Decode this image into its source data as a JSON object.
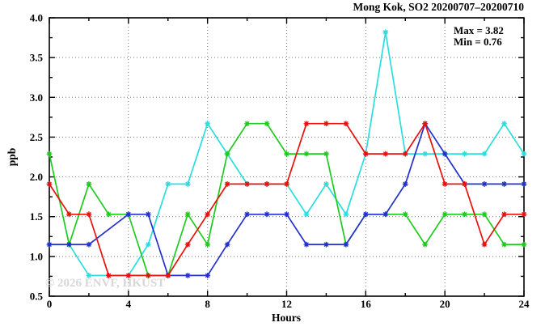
{
  "title": "Mong Kok, SO2 20200707–20200710",
  "stats": {
    "max_label": "Max = 3.82",
    "min_label": "Min = 0.76"
  },
  "watermark": "© 2026 ENVF, HKUST",
  "chart_data": {
    "type": "line",
    "title": "Mong Kok, SO2 20200707–20200710",
    "xlabel": "Hours",
    "ylabel": "ppb",
    "xlim": [
      0,
      24
    ],
    "ylim": [
      0.5,
      4.0
    ],
    "x_major_ticks": [
      0,
      4,
      8,
      12,
      16,
      20,
      24
    ],
    "x_tick_labels": [
      "0",
      "4",
      "8",
      "12",
      "16",
      "20",
      "24"
    ],
    "x_minor_ticks": [
      2,
      6,
      10,
      14,
      18,
      22
    ],
    "y_major_ticks": [
      0.5,
      1.0,
      1.5,
      2.0,
      2.5,
      3.0,
      3.5,
      4.0
    ],
    "y_tick_labels": [
      "0.5",
      "1.0",
      "1.5",
      "2.0",
      "2.5",
      "3.0",
      "3.5",
      "4.0"
    ],
    "y_minor_ticks": [
      0.75,
      1.25,
      1.75,
      2.25,
      2.75,
      3.25,
      3.75
    ],
    "grid": "dotted at major ticks, boundaries excluded",
    "legend": "none",
    "annotations": {
      "max": 3.82,
      "min": 0.76
    },
    "x": [
      0,
      1,
      2,
      3,
      4,
      5,
      6,
      7,
      8,
      9,
      10,
      11,
      12,
      13,
      14,
      15,
      16,
      17,
      18,
      19,
      20,
      21,
      22,
      23,
      24
    ],
    "series": [
      {
        "name": "day-4-cyan",
        "color": "#2bdede",
        "values": [
          1.15,
          1.15,
          0.76,
          0.76,
          0.76,
          1.15,
          1.91,
          1.91,
          2.67,
          2.29,
          1.91,
          1.91,
          1.91,
          1.53,
          1.91,
          1.53,
          2.29,
          3.82,
          2.29,
          2.29,
          2.29,
          2.29,
          2.29,
          2.67,
          2.29
        ]
      },
      {
        "name": "day-2-green",
        "color": "#1dcb1d",
        "values": [
          2.29,
          1.15,
          1.91,
          1.53,
          1.53,
          0.76,
          0.76,
          1.53,
          1.15,
          2.29,
          2.67,
          2.67,
          2.29,
          2.29,
          2.29,
          1.15,
          1.53,
          1.53,
          1.53,
          1.15,
          1.53,
          1.53,
          1.53,
          1.15,
          1.15
        ]
      },
      {
        "name": "day-3-blue",
        "color": "#2330cc",
        "values": [
          1.15,
          1.15,
          1.15,
          null,
          1.53,
          1.53,
          0.76,
          0.76,
          0.76,
          1.15,
          1.53,
          1.53,
          1.53,
          1.15,
          1.15,
          1.15,
          1.53,
          1.53,
          1.91,
          2.67,
          2.29,
          1.91,
          1.91,
          1.91,
          1.91
        ]
      },
      {
        "name": "day-1-red",
        "color": "#ea100a",
        "values": [
          1.91,
          1.53,
          1.53,
          0.76,
          0.76,
          0.76,
          0.76,
          1.15,
          1.53,
          1.91,
          1.91,
          1.91,
          1.91,
          2.67,
          2.67,
          2.67,
          2.29,
          2.29,
          2.29,
          2.67,
          1.91,
          1.91,
          1.15,
          1.53,
          1.53
        ]
      }
    ]
  }
}
